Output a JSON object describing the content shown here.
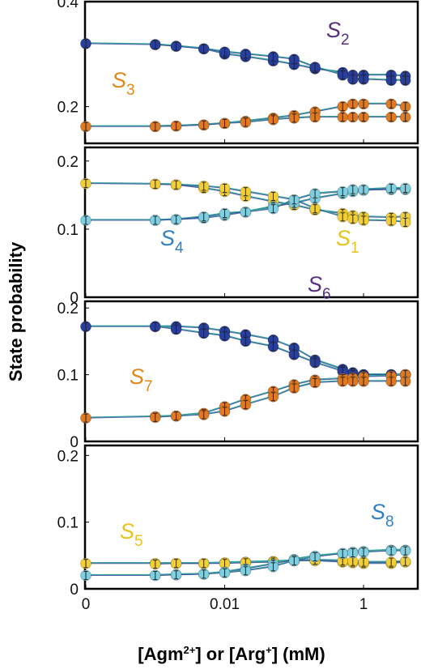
{
  "y_axis_title": "State probability",
  "x_axis_title": {
    "prefix": "[Agm",
    "sup1": "2+",
    "middle": "] or [Arg",
    "sup2": "+",
    "suffix": "]  (mM)"
  },
  "x_ticks": [
    {
      "label": "0",
      "value": 0.0001
    },
    {
      "label": "0.01",
      "value": 0.01
    },
    {
      "label": "1",
      "value": 1
    }
  ],
  "colors": {
    "dark_blue": "#2a3f99",
    "orange": "#e07a22",
    "light_blue": "#7fcfe0",
    "yellow": "#f2cf36",
    "curve": "#3aa59a",
    "label_purple": "#55307f",
    "label_orange": "#e0891a",
    "label_blue": "#2f7fc6",
    "label_yellow": "#e8c31e"
  },
  "chart_data": [
    {
      "type": "scatter",
      "x_scale": "log",
      "xlim": [
        0.0001,
        5
      ],
      "ylim": [
        0.13,
        0.4
      ],
      "yticks": [
        "0.2",
        "0.4"
      ],
      "ytick_values": [
        0.2,
        0.4
      ],
      "labels": [
        {
          "main": "S",
          "sub": "2",
          "color": "label_purple"
        },
        {
          "main": "S",
          "sub": "3",
          "color": "label_orange"
        }
      ],
      "series": [
        {
          "color": "dark_blue",
          "x": [
            0.0001,
            0.001,
            0.002,
            0.005,
            0.01,
            0.02,
            0.05,
            0.1,
            0.2,
            0.5,
            0.7,
            1,
            2.5,
            4
          ],
          "y": [
            0.32,
            0.318,
            0.315,
            0.31,
            0.3,
            0.295,
            0.287,
            0.28,
            0.272,
            0.265,
            0.26,
            0.26,
            0.26,
            0.258
          ]
        },
        {
          "color": "dark_blue",
          "x": [
            0.001,
            0.002,
            0.005,
            0.01,
            0.02,
            0.05,
            0.1,
            0.2,
            0.5,
            0.7,
            1,
            2.5,
            4
          ],
          "y": [
            0.318,
            0.315,
            0.31,
            0.304,
            0.3,
            0.295,
            0.29,
            0.275,
            0.26,
            0.252,
            0.252,
            0.25,
            0.25
          ]
        },
        {
          "color": "orange",
          "x": [
            0.0001,
            0.001,
            0.002,
            0.005,
            0.01,
            0.02,
            0.05,
            0.1,
            0.2,
            0.5,
            0.7,
            1,
            2.5,
            4
          ],
          "y": [
            0.162,
            0.162,
            0.163,
            0.165,
            0.168,
            0.172,
            0.178,
            0.183,
            0.19,
            0.2,
            0.205,
            0.205,
            0.205,
            0.2
          ]
        },
        {
          "color": "orange",
          "x": [
            0.001,
            0.002,
            0.005,
            0.01,
            0.02,
            0.05,
            0.1,
            0.2,
            0.5,
            0.7,
            1,
            2.5,
            4
          ],
          "y": [
            0.162,
            0.163,
            0.165,
            0.168,
            0.17,
            0.175,
            0.178,
            0.18,
            0.18,
            0.18,
            0.18,
            0.18,
            0.18
          ]
        }
      ]
    },
    {
      "type": "scatter",
      "x_scale": "log",
      "xlim": [
        0.0001,
        5
      ],
      "ylim": [
        0,
        0.22
      ],
      "yticks": [
        "0",
        "0.1",
        "0.2"
      ],
      "ytick_values": [
        0,
        0.1,
        0.2
      ],
      "labels": [
        {
          "main": "S",
          "sub": "4",
          "color": "label_blue"
        },
        {
          "main": "S",
          "sub": "1",
          "color": "label_yellow"
        }
      ],
      "series": [
        {
          "color": "yellow",
          "x": [
            0.0001,
            0.001,
            0.002,
            0.005,
            0.01,
            0.02,
            0.05,
            0.1,
            0.2,
            0.5,
            0.7,
            1,
            2.5,
            4
          ],
          "y": [
            0.167,
            0.166,
            0.165,
            0.16,
            0.155,
            0.148,
            0.14,
            0.135,
            0.128,
            0.123,
            0.12,
            0.118,
            0.117,
            0.118
          ]
        },
        {
          "color": "yellow",
          "x": [
            0.001,
            0.002,
            0.005,
            0.01,
            0.02,
            0.05,
            0.1,
            0.2,
            0.5,
            0.7,
            1,
            2.5,
            4
          ],
          "y": [
            0.166,
            0.165,
            0.163,
            0.16,
            0.155,
            0.148,
            0.143,
            0.13,
            0.118,
            0.115,
            0.113,
            0.112,
            0.11
          ]
        },
        {
          "color": "light_blue",
          "x": [
            0.0001,
            0.001,
            0.002,
            0.005,
            0.01,
            0.02,
            0.05,
            0.1,
            0.2,
            0.5,
            0.7,
            1,
            2.5,
            4
          ],
          "y": [
            0.113,
            0.113,
            0.114,
            0.116,
            0.12,
            0.125,
            0.133,
            0.138,
            0.145,
            0.152,
            0.155,
            0.157,
            0.158,
            0.158
          ]
        },
        {
          "color": "light_blue",
          "x": [
            0.001,
            0.002,
            0.005,
            0.01,
            0.02,
            0.05,
            0.1,
            0.2,
            0.5,
            0.7,
            1,
            2.5,
            4
          ],
          "y": [
            0.113,
            0.114,
            0.118,
            0.123,
            0.125,
            0.13,
            0.143,
            0.152,
            0.155,
            0.158,
            0.158,
            0.16,
            0.16
          ]
        }
      ]
    },
    {
      "type": "scatter",
      "x_scale": "log",
      "xlim": [
        0.0001,
        5
      ],
      "ylim": [
        0,
        0.21
      ],
      "yticks": [
        "0",
        "0.1",
        "0.2"
      ],
      "ytick_values": [
        0,
        0.1,
        0.2
      ],
      "labels": [
        {
          "main": "S",
          "sub": "6",
          "color": "label_purple"
        },
        {
          "main": "S",
          "sub": "7",
          "color": "label_orange"
        }
      ],
      "series": [
        {
          "color": "dark_blue",
          "x": [
            0.0001,
            0.001,
            0.002,
            0.005,
            0.01,
            0.02,
            0.05,
            0.1,
            0.2,
            0.5,
            0.7,
            1,
            2.5,
            4
          ],
          "y": [
            0.172,
            0.172,
            0.172,
            0.17,
            0.165,
            0.16,
            0.152,
            0.14,
            0.122,
            0.108,
            0.103,
            0.1,
            0.1,
            0.1
          ]
        },
        {
          "color": "dark_blue",
          "x": [
            0.001,
            0.002,
            0.005,
            0.01,
            0.02,
            0.05,
            0.1,
            0.2,
            0.5,
            0.7,
            1,
            2.5,
            4
          ],
          "y": [
            0.172,
            0.168,
            0.162,
            0.158,
            0.15,
            0.142,
            0.13,
            0.118,
            0.105,
            0.1,
            0.1,
            0.1,
            0.1
          ]
        },
        {
          "color": "orange",
          "x": [
            0.0001,
            0.001,
            0.002,
            0.005,
            0.01,
            0.02,
            0.05,
            0.1,
            0.2,
            0.5,
            0.7,
            1,
            2.5,
            4
          ],
          "y": [
            0.035,
            0.037,
            0.038,
            0.042,
            0.052,
            0.063,
            0.075,
            0.085,
            0.092,
            0.094,
            0.095,
            0.097,
            0.098,
            0.1
          ]
        },
        {
          "color": "orange",
          "x": [
            0.001,
            0.002,
            0.005,
            0.01,
            0.02,
            0.05,
            0.1,
            0.2,
            0.5,
            0.7,
            1,
            2.5,
            4
          ],
          "y": [
            0.036,
            0.038,
            0.04,
            0.045,
            0.055,
            0.067,
            0.08,
            0.088,
            0.09,
            0.09,
            0.09,
            0.09,
            0.09
          ]
        }
      ]
    },
    {
      "type": "scatter",
      "x_scale": "log",
      "xlim": [
        0.0001,
        5
      ],
      "ylim": [
        0,
        0.215
      ],
      "yticks": [
        "0",
        "0.1",
        "0.2"
      ],
      "ytick_values": [
        0,
        0.1,
        0.2
      ],
      "labels": [
        {
          "main": "S",
          "sub": "5",
          "color": "label_yellow"
        },
        {
          "main": "S",
          "sub": "8",
          "color": "label_blue"
        }
      ],
      "series": [
        {
          "color": "yellow",
          "x": [
            0.0001,
            0.001,
            0.002,
            0.005,
            0.01,
            0.02,
            0.05,
            0.1,
            0.2,
            0.5,
            0.7,
            1,
            2.5,
            4
          ],
          "y": [
            0.038,
            0.038,
            0.038,
            0.038,
            0.039,
            0.04,
            0.041,
            0.042,
            0.042,
            0.04,
            0.039,
            0.038,
            0.038,
            0.04
          ]
        },
        {
          "color": "yellow",
          "x": [
            0.001,
            0.002,
            0.005,
            0.01,
            0.02,
            0.05,
            0.1,
            0.2,
            0.5,
            0.7,
            1,
            2.5,
            4
          ],
          "y": [
            0.037,
            0.038,
            0.038,
            0.038,
            0.039,
            0.04,
            0.042,
            0.043,
            0.042,
            0.041,
            0.04,
            0.04,
            0.041
          ]
        },
        {
          "color": "light_blue",
          "x": [
            0.0001,
            0.001,
            0.002,
            0.005,
            0.01,
            0.02,
            0.05,
            0.1,
            0.2,
            0.5,
            0.7,
            1,
            2.5,
            4
          ],
          "y": [
            0.02,
            0.02,
            0.021,
            0.022,
            0.025,
            0.03,
            0.037,
            0.044,
            0.049,
            0.053,
            0.055,
            0.056,
            0.058,
            0.058
          ]
        },
        {
          "color": "light_blue",
          "x": [
            0.001,
            0.002,
            0.005,
            0.01,
            0.02,
            0.05,
            0.1,
            0.2,
            0.5,
            0.7,
            1,
            2.5,
            4
          ],
          "y": [
            0.02,
            0.021,
            0.022,
            0.024,
            0.027,
            0.033,
            0.042,
            0.048,
            0.053,
            0.054,
            0.055,
            0.057,
            0.057
          ]
        }
      ]
    }
  ]
}
